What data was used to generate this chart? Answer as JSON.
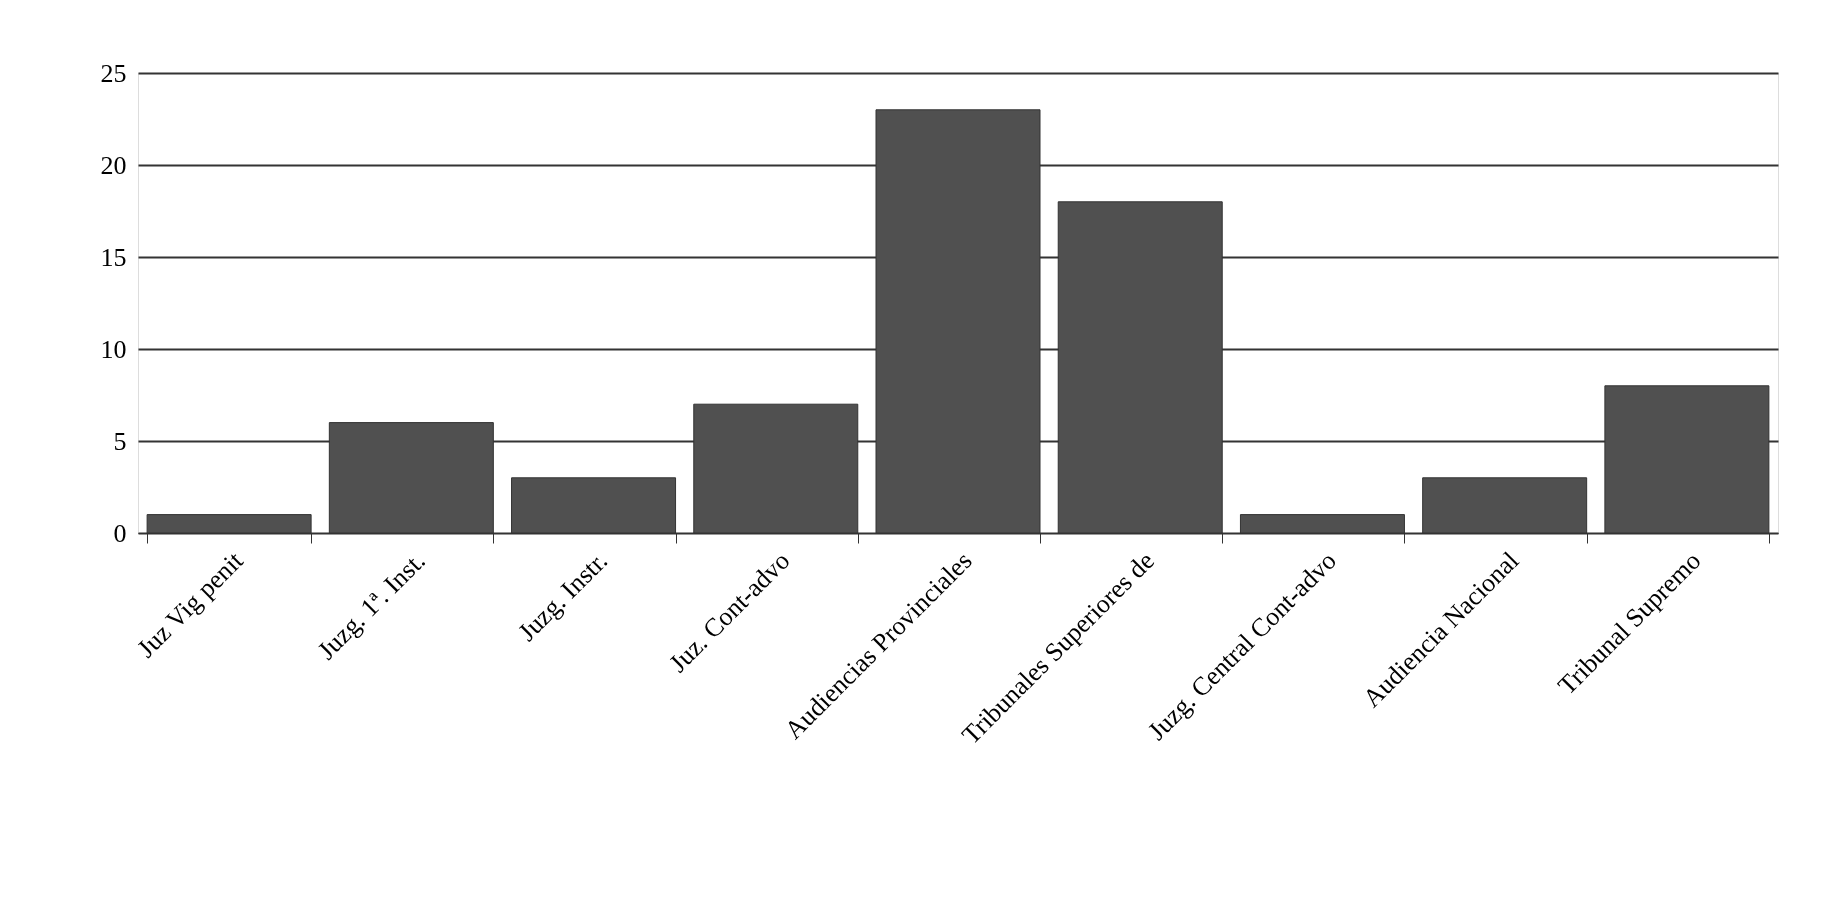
{
  "chart_data": {
    "type": "bar",
    "categories": [
      "Juz Vig penit",
      "Juzg. 1ª. Inst.",
      "Juzg. Instr.",
      "Juz. Cont-advo",
      "Audiencias Provinciales",
      "Tribunales Superiores de",
      "Juzg. Central Cont-advo",
      "Audiencia Nacional",
      "Tribunal Supremo"
    ],
    "values": [
      1,
      6,
      3,
      7,
      23,
      18,
      1,
      3,
      8
    ],
    "color": "#505050",
    "ylim": [
      0,
      25
    ],
    "yticks": [
      0,
      5,
      10,
      15,
      20,
      25
    ],
    "grid": "y"
  }
}
